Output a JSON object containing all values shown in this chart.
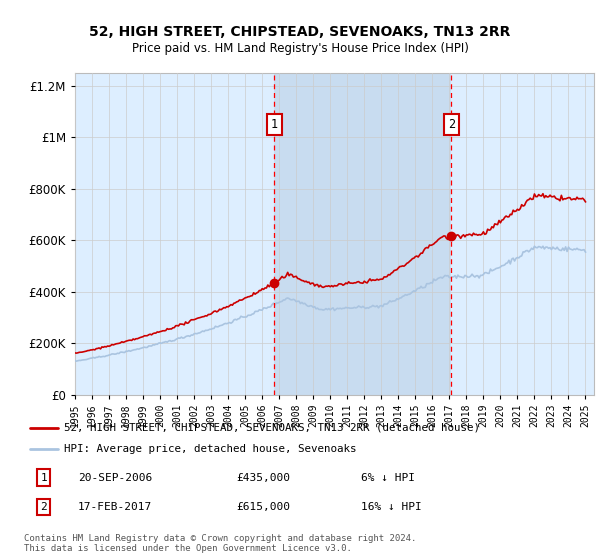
{
  "title": "52, HIGH STREET, CHIPSTEAD, SEVENOAKS, TN13 2RR",
  "subtitle": "Price paid vs. HM Land Registry's House Price Index (HPI)",
  "legend_line1": "52, HIGH STREET, CHIPSTEAD, SEVENOAKS, TN13 2RR (detached house)",
  "legend_line2": "HPI: Average price, detached house, Sevenoaks",
  "transaction1_date": "20-SEP-2006",
  "transaction1_price": "£435,000",
  "transaction1_hpi": "6% ↓ HPI",
  "transaction2_date": "17-FEB-2017",
  "transaction2_price": "£615,000",
  "transaction2_hpi": "16% ↓ HPI",
  "copyright": "Contains HM Land Registry data © Crown copyright and database right 2024.\nThis data is licensed under the Open Government Licence v3.0.",
  "hpi_color": "#aac4e0",
  "price_color": "#cc0000",
  "chart_bg_color": "#ddeeff",
  "shade_color": "#c8dcf0",
  "grid_color": "#cccccc",
  "transaction1_x": 2006.72,
  "transaction2_x": 2017.12,
  "ylim_min": 0,
  "ylim_max": 1250000,
  "xmin": 1995,
  "xmax": 2025.5
}
